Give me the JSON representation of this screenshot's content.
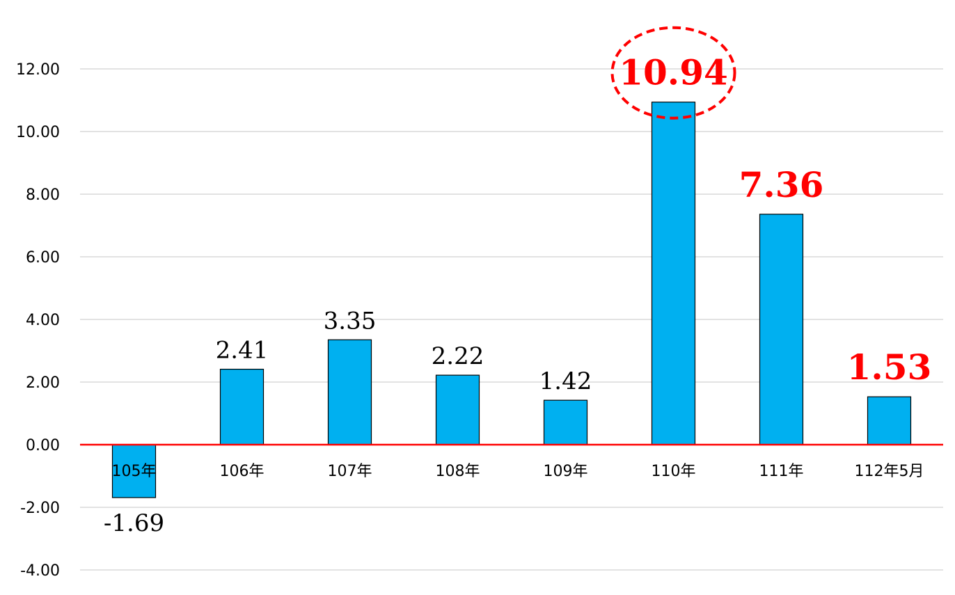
{
  "chart_data": {
    "type": "bar",
    "categories": [
      "105年",
      "106年",
      "107年",
      "108年",
      "109年",
      "110年",
      "111年",
      "112年5月"
    ],
    "values": [
      -1.69,
      2.41,
      3.35,
      2.22,
      1.42,
      10.94,
      7.36,
      1.53
    ],
    "data_labels": [
      "-1.69",
      "2.41",
      "3.35",
      "2.22",
      "1.42",
      "10.94",
      "7.36",
      "1.53"
    ],
    "highlighted": [
      false,
      false,
      false,
      false,
      false,
      true,
      true,
      true
    ],
    "circled_index": 5,
    "y_ticks": [
      "12.00",
      "10.00",
      "8.00",
      "6.00",
      "4.00",
      "2.00",
      "0.00",
      "-2.00",
      "-4.00"
    ],
    "ylim": [
      -4,
      12
    ],
    "grid": true,
    "title": "",
    "xlabel": "",
    "ylabel": "",
    "colors": {
      "bar": "#00b0f0",
      "bar_border": "#000000",
      "zero_line": "#ff0000",
      "highlight_label": "#ff0000",
      "grid": "#d9d9d9"
    }
  }
}
